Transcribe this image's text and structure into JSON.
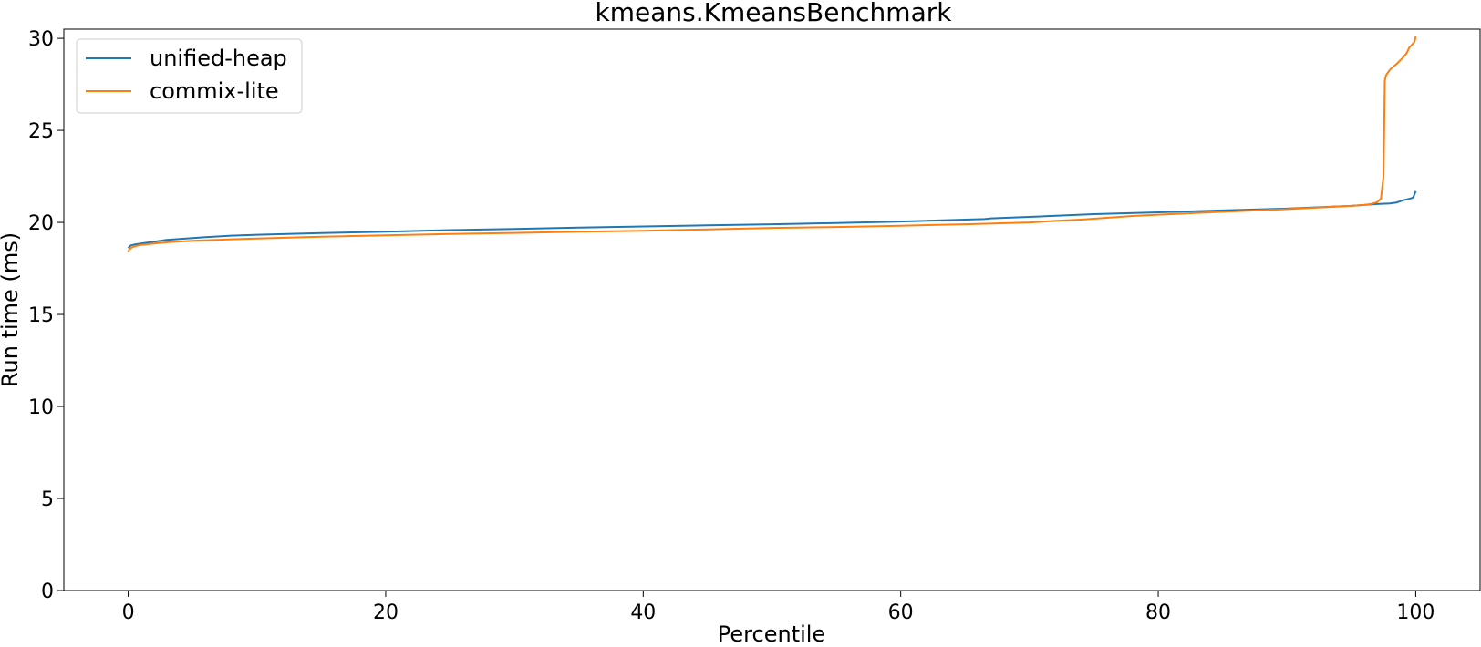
{
  "chart_data": {
    "type": "line",
    "title": "kmeans.KmeansBenchmark",
    "xlabel": "Percentile",
    "ylabel": "Run time (ms)",
    "xlim": [
      -5,
      105
    ],
    "ylim": [
      0,
      30.5
    ],
    "xticks": [
      0,
      20,
      40,
      60,
      80,
      100
    ],
    "xtick_labels": [
      "0",
      "20",
      "40",
      "60",
      "80",
      "100"
    ],
    "yticks": [
      0,
      5,
      10,
      15,
      20,
      25,
      30
    ],
    "ytick_labels": [
      "0",
      "5",
      "10",
      "15",
      "20",
      "25",
      "30"
    ],
    "grid": false,
    "legend_position": "top-left",
    "series": [
      {
        "name": "unified-heap",
        "color": "#1f77b4",
        "x": [
          0,
          0.2,
          0.5,
          1,
          1.5,
          2,
          3,
          4,
          5,
          6,
          8,
          10,
          15,
          20,
          25,
          30,
          35,
          40,
          45,
          50,
          55,
          60,
          65,
          66.5,
          67,
          70,
          75,
          80,
          85,
          90,
          95,
          97,
          98,
          98.5,
          99,
          99.5,
          99.8,
          100
        ],
        "y": [
          18.6,
          18.75,
          18.8,
          18.85,
          18.9,
          18.95,
          19.05,
          19.1,
          19.15,
          19.2,
          19.28,
          19.33,
          19.42,
          19.5,
          19.58,
          19.64,
          19.72,
          19.78,
          19.84,
          19.9,
          19.97,
          20.05,
          20.15,
          20.18,
          20.22,
          20.3,
          20.45,
          20.55,
          20.65,
          20.75,
          20.9,
          21.0,
          21.03,
          21.08,
          21.2,
          21.28,
          21.35,
          21.7
        ]
      },
      {
        "name": "commix-lite",
        "color": "#ff7f0e",
        "x": [
          0,
          0.1,
          0.3,
          0.6,
          1,
          2,
          3,
          5,
          8,
          10,
          15,
          20,
          25,
          30,
          35,
          40,
          45,
          50,
          55,
          60,
          65,
          70,
          72,
          74,
          76,
          78,
          80,
          85,
          90,
          95,
          96,
          96.5,
          97,
          97.3,
          97.5,
          97.55,
          97.6,
          97.7,
          98,
          98.5,
          99,
          99.3,
          99.5,
          99.7,
          99.9,
          100
        ],
        "y": [
          18.4,
          18.55,
          18.65,
          18.72,
          18.78,
          18.85,
          18.92,
          19.0,
          19.08,
          19.12,
          19.22,
          19.3,
          19.37,
          19.43,
          19.5,
          19.55,
          19.62,
          19.7,
          19.75,
          19.82,
          19.9,
          20.0,
          20.08,
          20.15,
          20.25,
          20.35,
          20.42,
          20.58,
          20.72,
          20.9,
          20.95,
          21.0,
          21.1,
          21.3,
          22.5,
          25.0,
          27.7,
          28.0,
          28.3,
          28.6,
          28.95,
          29.2,
          29.5,
          29.65,
          29.8,
          30.1
        ]
      }
    ]
  }
}
